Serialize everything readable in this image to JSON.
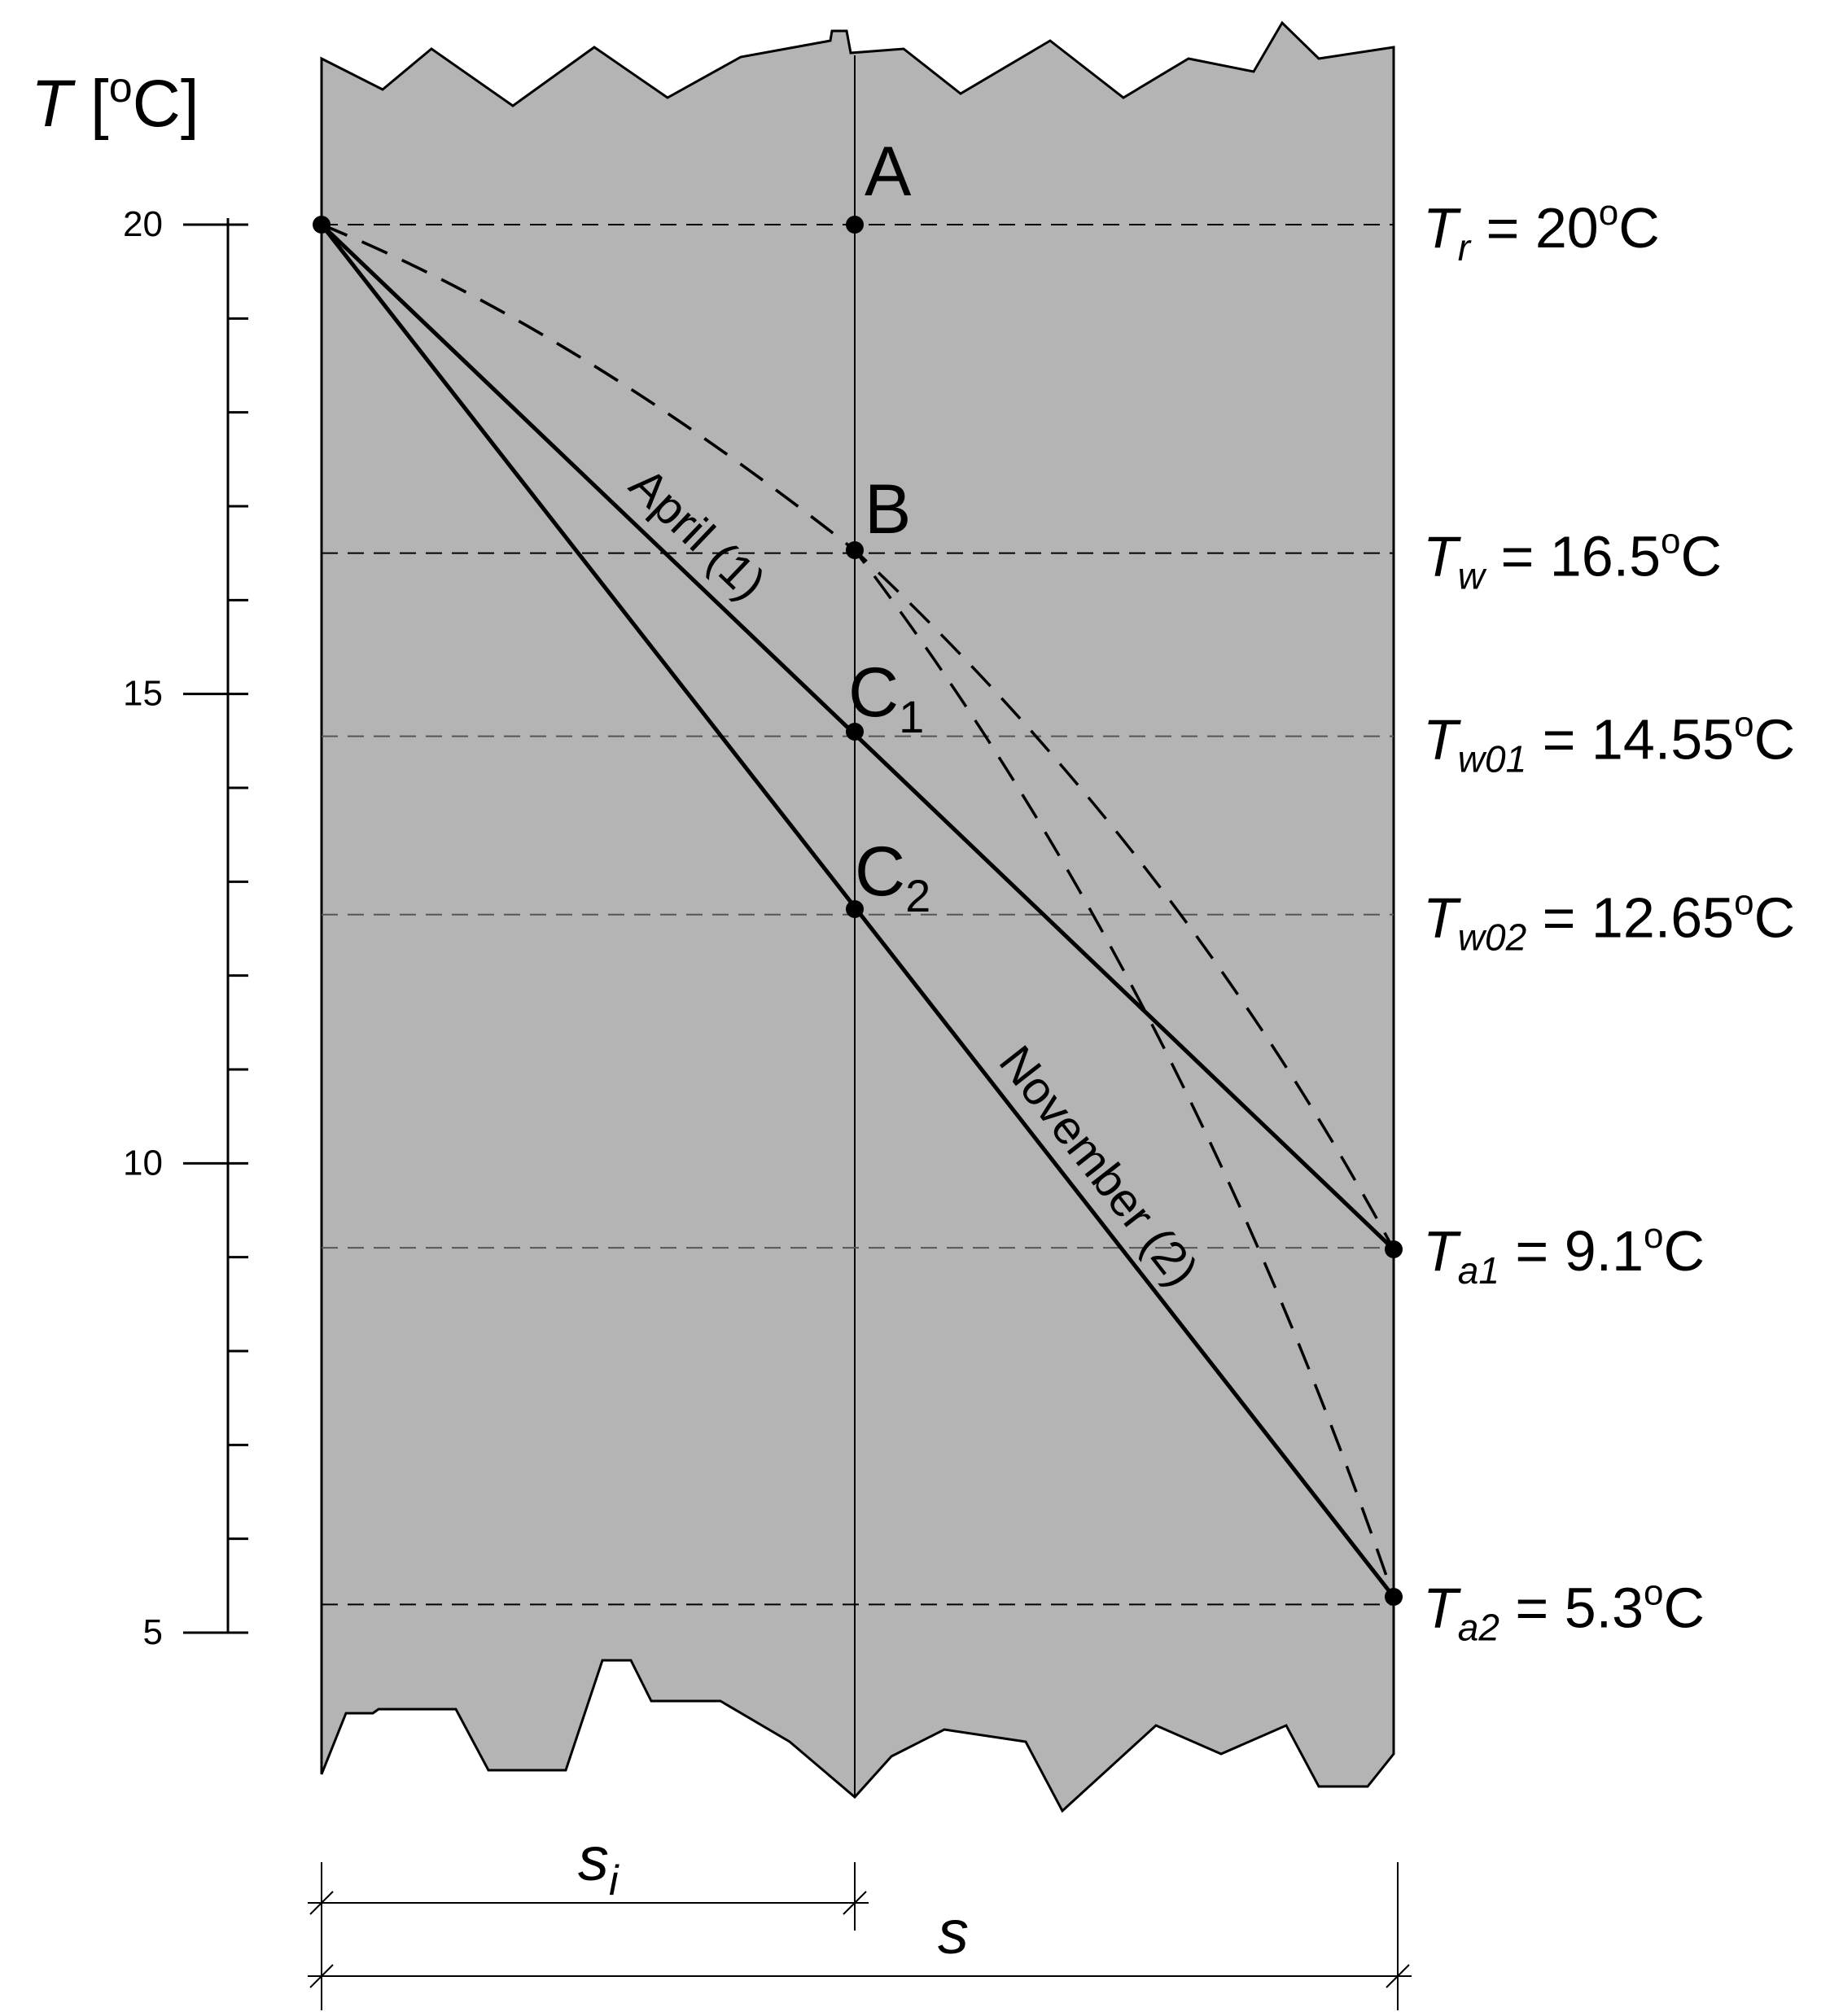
{
  "axis": {
    "symbol": "T",
    "unit": "[",
    "unit_deg": "o",
    "unit_c": "C]",
    "ticks": [
      {
        "value": 20,
        "label": "20"
      },
      {
        "value": 15,
        "label": "15"
      },
      {
        "value": 10,
        "label": "10"
      },
      {
        "value": 5,
        "label": "5"
      }
    ]
  },
  "points": {
    "A": "A",
    "B": "B",
    "C1_main": "C",
    "C1_sub": "1",
    "C2_main": "C",
    "C2_sub": "2"
  },
  "levels": [
    {
      "key": "Tr",
      "value": 20,
      "sym": "T",
      "sub": "r",
      "rest": " = 20",
      "deg": "o",
      "unit": "C"
    },
    {
      "key": "Tw",
      "value": 16.5,
      "sym": "T",
      "sub": "w",
      "rest": " = 16.5",
      "deg": "o",
      "unit": "C"
    },
    {
      "key": "Tw01",
      "value": 14.55,
      "sym": "T",
      "sub": "w01",
      "rest": " = 14.55",
      "deg": "o",
      "unit": "C"
    },
    {
      "key": "Tw02",
      "value": 12.65,
      "sym": "T",
      "sub": "w02",
      "rest": " = 12.65",
      "deg": "o",
      "unit": "C"
    },
    {
      "key": "Ta1",
      "value": 9.1,
      "sym": "T",
      "sub": "a1",
      "rest": " = 9.1",
      "deg": "o",
      "unit": "C"
    },
    {
      "key": "Ta2",
      "value": 5.3,
      "sym": "T",
      "sub": "a2",
      "rest": " = 5.3",
      "deg": "o",
      "unit": "C"
    }
  ],
  "lines": {
    "april": "April (1)",
    "november": "November (2)"
  },
  "dimensions": {
    "si_main": "s",
    "si_sub": "i",
    "s": "s"
  },
  "colors": {
    "wall": "#b4b4b4",
    "line": "#000000",
    "dashed_ref": "#555555"
  }
}
